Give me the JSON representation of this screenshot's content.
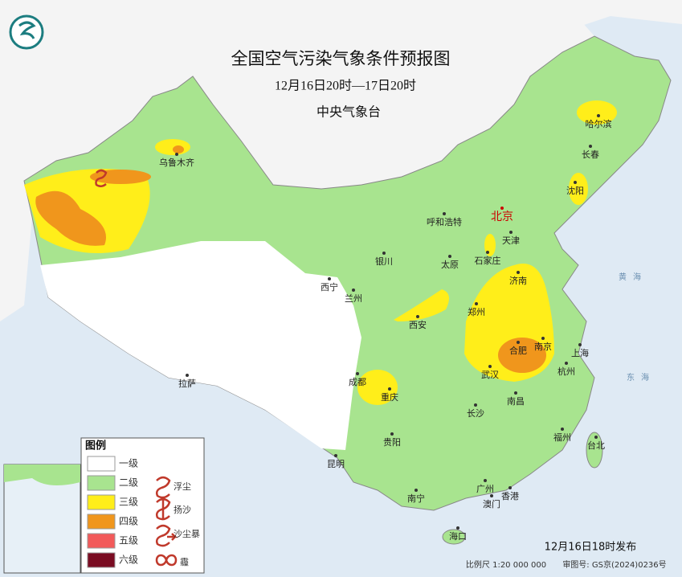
{
  "header": {
    "title": "全国空气污染气象条件预报图",
    "subtitle": "12月16日20时—17日20时",
    "agency": "中央气象台"
  },
  "cities": [
    "乌鲁木齐",
    "哈尔滨",
    "长春",
    "沈阳",
    "北京",
    "天津",
    "呼和浩特",
    "石家庄",
    "太原",
    "银川",
    "济南",
    "西宁",
    "兰州",
    "郑州",
    "西安",
    "合肥",
    "南京",
    "上海",
    "武汉",
    "杭州",
    "成都",
    "重庆",
    "拉萨",
    "长沙",
    "南昌",
    "贵阳",
    "福州",
    "台北",
    "昆明",
    "广州",
    "南宁",
    "澳门",
    "香港",
    "海口"
  ],
  "seas": [
    "黄海",
    "东海"
  ],
  "legend": {
    "title": "图例",
    "levels": [
      {
        "label": "一级",
        "color": "#ffffff"
      },
      {
        "label": "二级",
        "color": "#a8e48f"
      },
      {
        "label": "三级",
        "color": "#ffee1a"
      },
      {
        "label": "四级",
        "color": "#f0961c"
      },
      {
        "label": "五级",
        "color": "#f25a5a"
      },
      {
        "label": "六级",
        "color": "#7a0c22"
      }
    ],
    "weather": [
      "浮尘",
      "扬沙",
      "沙尘暴",
      "霾"
    ]
  },
  "footer": {
    "issued": "12月16日18时发布",
    "scale": "比例尺 1:20 000 000",
    "approval": "审图号: GS京(2024)0236号"
  }
}
